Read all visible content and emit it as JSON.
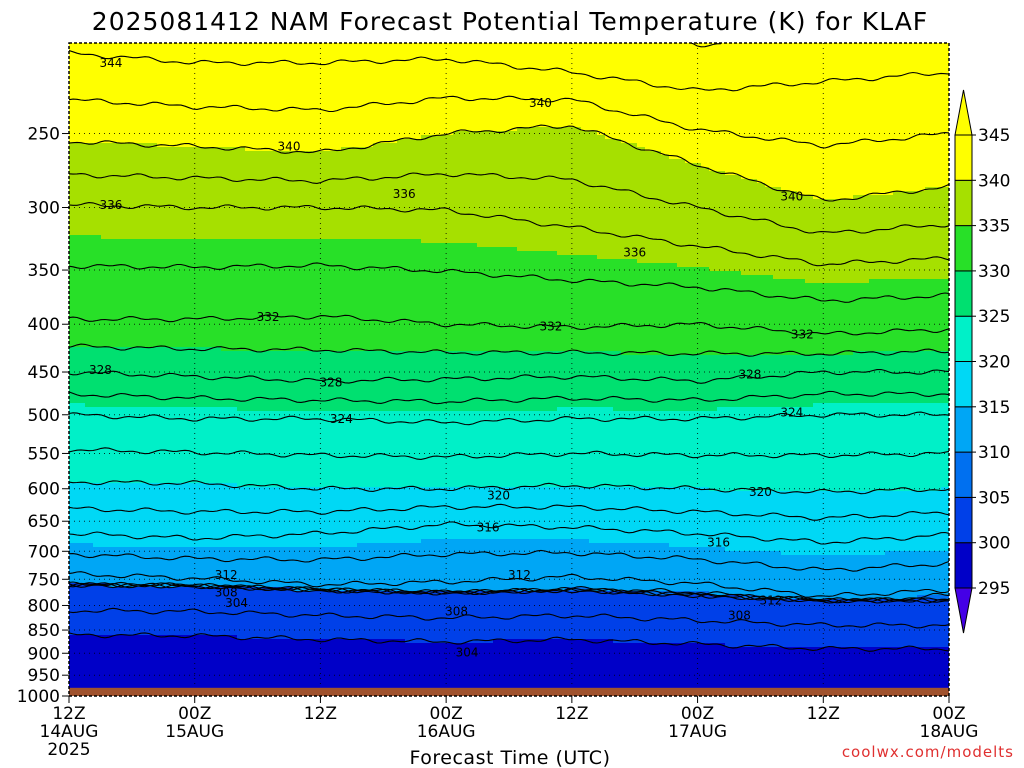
{
  "chart_data": {
    "type": "contour",
    "title": "2025081412 NAM Forecast Potential Temperature (K) for KLAF",
    "xlabel": "Forecast Time (UTC)",
    "ylabel": "",
    "credit": "coolwx.com/modelts",
    "y_axis": {
      "scale": "log-pressure",
      "ticks": [
        250,
        300,
        350,
        400,
        450,
        500,
        550,
        600,
        650,
        700,
        750,
        800,
        850,
        900,
        950,
        1000
      ],
      "tick_labels": [
        "250",
        "300",
        "350",
        "400",
        "450",
        "500",
        "550",
        "600",
        "650",
        "700",
        "750",
        "800",
        "850",
        "900",
        "950",
        "1000"
      ],
      "range": [
        200,
        1000
      ]
    },
    "x_axis": {
      "range_hours": [
        0,
        84
      ],
      "ticks": [
        {
          "hours": 0,
          "lines": [
            "12Z",
            "14AUG",
            "2025"
          ]
        },
        {
          "hours": 12,
          "lines": [
            "00Z",
            "15AUG"
          ]
        },
        {
          "hours": 24,
          "lines": [
            "12Z"
          ]
        },
        {
          "hours": 36,
          "lines": [
            "00Z",
            "16AUG"
          ]
        },
        {
          "hours": 48,
          "lines": [
            "12Z"
          ]
        },
        {
          "hours": 60,
          "lines": [
            "00Z",
            "17AUG"
          ]
        },
        {
          "hours": 72,
          "lines": [
            "12Z"
          ]
        },
        {
          "hours": 84,
          "lines": [
            "00Z",
            "18AUG"
          ]
        }
      ]
    },
    "grid": true,
    "colorbar": {
      "placement": "right",
      "levels": [
        295,
        300,
        305,
        310,
        315,
        320,
        325,
        330,
        335,
        340,
        345
      ],
      "labels": [
        "295",
        "300",
        "305",
        "310",
        "315",
        "320",
        "325",
        "330",
        "335",
        "340",
        "345"
      ],
      "colors": [
        "#4400e6",
        "#0000c8",
        "#0040e8",
        "#0070f0",
        "#00a6f5",
        "#00d8f5",
        "#00f0c8",
        "#00e070",
        "#28e028",
        "#a6e000",
        "#ffff00"
      ],
      "extend": "both"
    },
    "contour_interval": 2,
    "contours": [
      {
        "level": 304,
        "points": [
          [
            0,
            760
          ],
          [
            12,
            762
          ],
          [
            24,
            770
          ],
          [
            36,
            775
          ],
          [
            48,
            770
          ],
          [
            60,
            780
          ],
          [
            72,
            790
          ],
          [
            84,
            790
          ]
        ]
      },
      {
        "level": 308,
        "points": [
          [
            0,
            792
          ],
          [
            12,
            800
          ],
          [
            24,
            806
          ],
          [
            36,
            812
          ],
          [
            48,
            790
          ],
          [
            60,
            790
          ],
          [
            72,
            808
          ],
          [
            84,
            790
          ]
        ]
      },
      {
        "level": 312,
        "points": [
          [
            0,
            740
          ],
          [
            12,
            748
          ],
          [
            24,
            760
          ],
          [
            36,
            755
          ],
          [
            48,
            745
          ],
          [
            60,
            758
          ],
          [
            72,
            782
          ],
          [
            84,
            770
          ]
        ]
      },
      {
        "level": 316,
        "points": [
          [
            0,
            670
          ],
          [
            12,
            678
          ],
          [
            24,
            670
          ],
          [
            36,
            655
          ],
          [
            48,
            660
          ],
          [
            60,
            670
          ],
          [
            72,
            685
          ],
          [
            84,
            672
          ]
        ]
      },
      {
        "level": 320,
        "points": [
          [
            0,
            590
          ],
          [
            12,
            592
          ],
          [
            24,
            600
          ],
          [
            36,
            600
          ],
          [
            48,
            595
          ],
          [
            60,
            600
          ],
          [
            72,
            605
          ],
          [
            84,
            600
          ]
        ]
      },
      {
        "level": 324,
        "points": [
          [
            0,
            500
          ],
          [
            12,
            505
          ],
          [
            24,
            505
          ],
          [
            36,
            510
          ],
          [
            48,
            505
          ],
          [
            60,
            505
          ],
          [
            72,
            500
          ],
          [
            84,
            500
          ]
        ]
      },
      {
        "level": 328,
        "points": [
          [
            0,
            450
          ],
          [
            12,
            455
          ],
          [
            24,
            460
          ],
          [
            36,
            458
          ],
          [
            48,
            455
          ],
          [
            60,
            460
          ],
          [
            72,
            450
          ],
          [
            84,
            450
          ]
        ]
      },
      {
        "level": 332,
        "points": [
          [
            0,
            395
          ],
          [
            12,
            395
          ],
          [
            24,
            392
          ],
          [
            36,
            400
          ],
          [
            48,
            403
          ],
          [
            60,
            400
          ],
          [
            72,
            410
          ],
          [
            84,
            405
          ]
        ]
      },
      {
        "level": 336,
        "points": [
          [
            0,
            298
          ],
          [
            12,
            300
          ],
          [
            24,
            300
          ],
          [
            36,
            302
          ],
          [
            48,
            315
          ],
          [
            60,
            330
          ],
          [
            72,
            345
          ],
          [
            84,
            340
          ]
        ]
      },
      {
        "level": 340,
        "points": [
          [
            0,
            255
          ],
          [
            12,
            258
          ],
          [
            24,
            262
          ],
          [
            36,
            250
          ],
          [
            48,
            245
          ],
          [
            60,
            270
          ],
          [
            72,
            295
          ],
          [
            84,
            285
          ]
        ]
      },
      {
        "level": 344,
        "points": [
          [
            0,
            205
          ],
          [
            12,
            210
          ],
          [
            24,
            210
          ],
          [
            36,
            208
          ],
          [
            48,
            215
          ],
          [
            60,
            225
          ],
          [
            72,
            220
          ],
          [
            84,
            215
          ]
        ]
      }
    ],
    "contour_labels": [
      {
        "text": "344",
        "hours": 4,
        "p": 210
      },
      {
        "text": "340",
        "hours": 21,
        "p": 258
      },
      {
        "text": "340",
        "hours": 45,
        "p": 232
      },
      {
        "text": "340",
        "hours": 69,
        "p": 292
      },
      {
        "text": "336",
        "hours": 4,
        "p": 298
      },
      {
        "text": "336",
        "hours": 32,
        "p": 290
      },
      {
        "text": "336",
        "hours": 54,
        "p": 335
      },
      {
        "text": "332",
        "hours": 19,
        "p": 393
      },
      {
        "text": "332",
        "hours": 46,
        "p": 402
      },
      {
        "text": "332",
        "hours": 70,
        "p": 410
      },
      {
        "text": "328",
        "hours": 3,
        "p": 448
      },
      {
        "text": "328",
        "hours": 25,
        "p": 462
      },
      {
        "text": "328",
        "hours": 65,
        "p": 453
      },
      {
        "text": "324",
        "hours": 26,
        "p": 505
      },
      {
        "text": "324",
        "hours": 69,
        "p": 497
      },
      {
        "text": "320",
        "hours": 41,
        "p": 610
      },
      {
        "text": "320",
        "hours": 66,
        "p": 605
      },
      {
        "text": "316",
        "hours": 40,
        "p": 660
      },
      {
        "text": "316",
        "hours": 62,
        "p": 685
      },
      {
        "text": "312",
        "hours": 15,
        "p": 742
      },
      {
        "text": "312",
        "hours": 43,
        "p": 742
      },
      {
        "text": "312",
        "hours": 67,
        "p": 790
      },
      {
        "text": "308",
        "hours": 15,
        "p": 775
      },
      {
        "text": "308",
        "hours": 37,
        "p": 812
      },
      {
        "text": "308",
        "hours": 64,
        "p": 820
      },
      {
        "text": "304",
        "hours": 16,
        "p": 795
      },
      {
        "text": "304",
        "hours": 38,
        "p": 898
      }
    ],
    "surface_pressure": 980
  }
}
